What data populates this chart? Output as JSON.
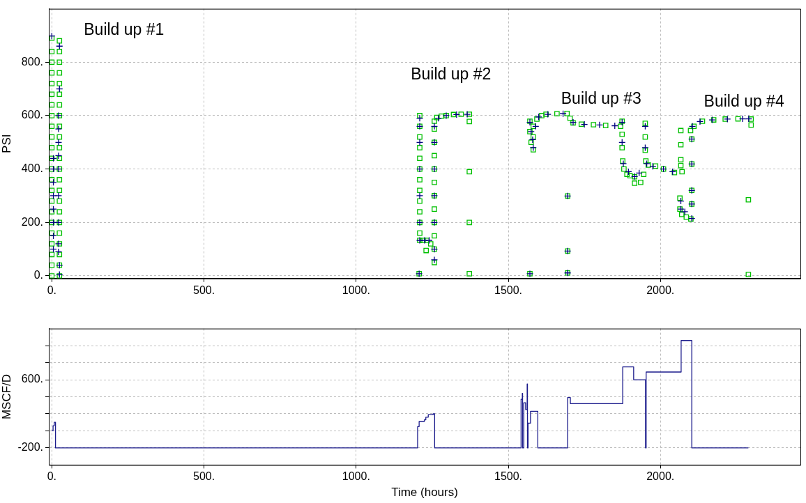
{
  "chart_data": [
    {
      "type": "scatter",
      "ylabel": "PSI",
      "xlim": [
        -10,
        2460
      ],
      "ylim": [
        -10,
        1000
      ],
      "xticks": [
        {
          "value": 0,
          "label": "0."
        },
        {
          "value": 500,
          "label": "500."
        },
        {
          "value": 1000,
          "label": "1000."
        },
        {
          "value": 1500,
          "label": "1500."
        },
        {
          "value": 2000,
          "label": "2000."
        }
      ],
      "yticks": [
        {
          "value": 0,
          "label": "0."
        },
        {
          "value": 200,
          "label": "200."
        },
        {
          "value": 400,
          "label": "400."
        },
        {
          "value": 600,
          "label": "600."
        },
        {
          "value": 800,
          "label": "800."
        }
      ],
      "grid": true,
      "legend": false,
      "annotations": [
        "Build up #1",
        "Build up #2",
        "Build up #3",
        "Build up #4"
      ],
      "series": [
        {
          "color": "#00c000",
          "marker": "square",
          "x": [
            0,
            0,
            0,
            0,
            0,
            0,
            0,
            0,
            0,
            0,
            0,
            0,
            0,
            0,
            0,
            0,
            0,
            0,
            0,
            0,
            0,
            0,
            0,
            25,
            25,
            25,
            25,
            25,
            25,
            25,
            25,
            25,
            25,
            25,
            25,
            25,
            25,
            25,
            25,
            25,
            25,
            25,
            25,
            25,
            25,
            25,
            1209,
            1209,
            1209,
            1209,
            1209,
            1209,
            1209,
            1209,
            1209,
            1209,
            1209,
            1209,
            1209,
            1220,
            1232,
            1245,
            1230,
            1257,
            1257,
            1257,
            1257,
            1257,
            1257,
            1257,
            1257,
            1257,
            1257,
            1257,
            1257,
            1265,
            1280,
            1296,
            1320,
            1345,
            1372,
            1372,
            1372,
            1372,
            1372,
            1207,
            1571,
            1571,
            1575,
            1582,
            1582,
            1582,
            1594,
            1610,
            1624,
            1660,
            1693,
            1703,
            1713,
            1740,
            1780,
            1820,
            1869,
            1874,
            1874,
            1874,
            1876,
            1880,
            1890,
            1900,
            1915,
            1915,
            1935,
            1945,
            1950,
            1950,
            1950,
            1952,
            1960,
            1984,
            2010,
            2046,
            2071,
            1695,
            1695,
            1695,
            1571,
            2067,
            2067,
            2067,
            2067,
            2064,
            2064,
            2070,
            2085,
            2100,
            2099,
            2103,
            2103,
            2103,
            2103,
            2110,
            2138,
            2175,
            2213,
            2255,
            2298,
            2298,
            2289,
            2289
          ],
          "values": [
            0,
            40,
            80,
            120,
            160,
            200,
            240,
            280,
            320,
            360,
            400,
            440,
            480,
            520,
            560,
            600,
            640,
            680,
            720,
            760,
            800,
            840,
            890,
            0,
            40,
            80,
            120,
            160,
            200,
            240,
            280,
            320,
            360,
            400,
            440,
            480,
            520,
            560,
            600,
            640,
            680,
            720,
            760,
            800,
            840,
            880,
            600,
            560,
            520,
            480,
            440,
            400,
            360,
            320,
            280,
            240,
            200,
            160,
            133,
            133,
            133,
            120,
            95,
            50,
            100,
            150,
            200,
            250,
            300,
            350,
            400,
            450,
            500,
            550,
            579,
            593,
            598,
            600,
            604,
            605,
            605,
            578,
            390,
            200,
            8,
            8,
            579,
            540,
            500,
            472,
            520,
            560,
            587,
            600,
            605,
            607,
            608,
            590,
            573,
            568,
            566,
            563,
            560,
            579,
            530,
            480,
            430,
            400,
            380,
            375,
            371,
            347,
            350,
            380,
            571,
            520,
            470,
            430,
            415,
            411,
            400,
            387,
            390,
            299,
            93,
            11,
            8,
            544,
            491,
            435,
            413,
            291,
            250,
            230,
            220,
            213,
            544,
            512,
            419,
            320,
            269,
            560,
            579,
            584,
            587,
            588,
            587,
            565,
            285,
            5
          ]
        },
        {
          "color": "#000080",
          "marker": "cross",
          "x": [
            5,
            5,
            5,
            5,
            5,
            5,
            5,
            5,
            22,
            22,
            22,
            22,
            22,
            22,
            22,
            22,
            22,
            25,
            25,
            25,
            25,
            0,
            1209,
            1209,
            1209,
            1209,
            1209,
            1209,
            1209,
            1225,
            1240,
            1257,
            1257,
            1257,
            1257,
            1257,
            1257,
            1257,
            1270,
            1296,
            1330,
            1365,
            1207,
            1571,
            1575,
            1580,
            1582,
            1590,
            1600,
            1630,
            1680,
            1713,
            1750,
            1800,
            1850,
            1874,
            1874,
            1878,
            1895,
            1915,
            1930,
            1950,
            1950,
            1955,
            1975,
            2010,
            2040,
            1695,
            1695,
            1695,
            1571,
            2067,
            2067,
            2080,
            2103,
            2103,
            2103,
            2103,
            2103,
            2105,
            2130,
            2170,
            2220,
            2270,
            2290
          ],
          "values": [
            100,
            150,
            200,
            250,
            300,
            350,
            400,
            440,
            90,
            120,
            200,
            300,
            400,
            450,
            500,
            550,
            600,
            700,
            860,
            40,
            5,
            898,
            590,
            560,
            500,
            400,
            300,
            200,
            133,
            133,
            133,
            60,
            100,
            200,
            300,
            400,
            500,
            560,
            590,
            600,
            604,
            605,
            8,
            575,
            540,
            510,
            480,
            560,
            595,
            605,
            607,
            575,
            567,
            565,
            562,
            575,
            500,
            420,
            390,
            372,
            385,
            560,
            480,
            420,
            410,
            400,
            390,
            299,
            93,
            11,
            8,
            280,
            250,
            240,
            215,
            512,
            419,
            320,
            269,
            560,
            578,
            584,
            587,
            588,
            588
          ]
        }
      ]
    },
    {
      "type": "step",
      "ylabel": "MSCF/D",
      "xlabel": "Time (hours)",
      "xlim": [
        -10,
        2460
      ],
      "ylim": [
        -400,
        1200
      ],
      "xticks": [
        {
          "value": 0,
          "label": "0."
        },
        {
          "value": 500,
          "label": "500."
        },
        {
          "value": 1000,
          "label": "1000."
        },
        {
          "value": 1500,
          "label": "1500."
        },
        {
          "value": 2000,
          "label": "2000."
        }
      ],
      "yticks": [
        {
          "value": -200,
          "label": "-200."
        },
        {
          "value": 0,
          "label": null
        },
        {
          "value": 200,
          "label": null
        },
        {
          "value": 400,
          "label": null
        },
        {
          "value": 600,
          "label": "600."
        },
        {
          "value": 800,
          "label": null
        },
        {
          "value": 1000,
          "label": null
        }
      ],
      "grid": true,
      "legend": false,
      "marker": "none",
      "series": [
        {
          "color": "#1c1c8c",
          "x": [
            0,
            4,
            8,
            12,
            1202,
            1207,
            1224,
            1229,
            1237,
            1253,
            1258,
            1542,
            1546,
            1547,
            1551,
            1557,
            1562,
            1563,
            1565,
            1573,
            1597,
            1695,
            1704,
            1876,
            1912,
            1951,
            1953,
            2068,
            2103,
            2289
          ],
          "values": [
            0,
            60,
            100,
            -200,
            50,
            110,
            130,
            160,
            190,
            200,
            -200,
            370,
            440,
            -200,
            330,
            250,
            550,
            -200,
            90,
            230,
            -200,
            390,
            320,
            750,
            600,
            -200,
            690,
            1060,
            -200,
            -200
          ]
        }
      ]
    }
  ]
}
